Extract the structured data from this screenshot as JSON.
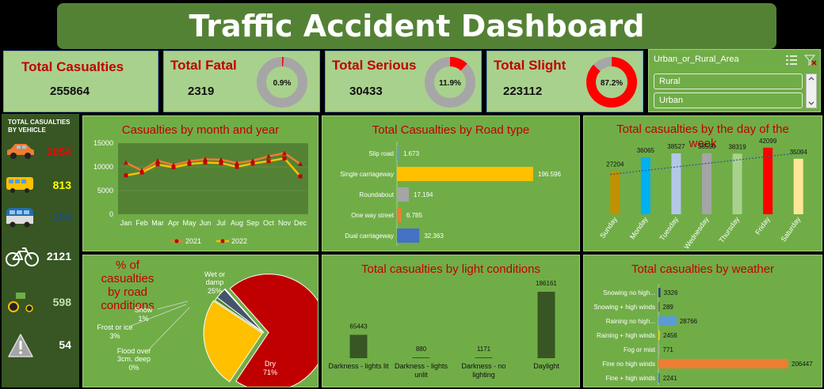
{
  "dashboard": {
    "title": "Traffic Accident Dashboard"
  },
  "kpis": {
    "total_casualties": {
      "label": "Total Casualties",
      "value": "255864"
    },
    "total_fatal": {
      "label": "Total Fatal",
      "value": "2319",
      "pct": "0.9%",
      "fraction": 0.009
    },
    "total_serious": {
      "label": "Total Serious",
      "value": "30433",
      "pct": "11.9%",
      "fraction": 0.119
    },
    "total_slight": {
      "label": "Total Slight",
      "value": "223112",
      "pct": "87.2%",
      "fraction": 0.872
    }
  },
  "filter": {
    "header": "Urban_or_Rural_Area",
    "options": [
      "Rural",
      "Urban"
    ]
  },
  "vehicles": {
    "header_line1": "TOTAL CASUALTIES",
    "header_line2": "BY VEHICLE",
    "items": [
      {
        "icon": "car-icon",
        "value": "2054",
        "color": "#ff0000"
      },
      {
        "icon": "bus-icon",
        "value": "813",
        "color": "#ffff00"
      },
      {
        "icon": "van-icon",
        "value": "204",
        "color": "#1f4e79"
      },
      {
        "icon": "bicycle-icon",
        "value": "2121",
        "color": "#ffffff"
      },
      {
        "icon": "tractor-icon",
        "value": "598",
        "color": "#c5e0b4"
      },
      {
        "icon": "warning-icon",
        "value": "54",
        "color": "#ffffff"
      }
    ]
  },
  "chart_data": [
    {
      "id": "month",
      "type": "line",
      "title": "Casualties by month and year",
      "categories": [
        "Jan",
        "Feb",
        "Mar",
        "Apr",
        "May",
        "Jun",
        "Jul",
        "Aug",
        "Sep",
        "Oct",
        "Nov",
        "Dec"
      ],
      "ylim": [
        0,
        15000
      ],
      "yticks": [
        "0",
        "5000",
        "10000",
        "15000"
      ],
      "series": [
        {
          "name": "2021",
          "color": "#ed7d31",
          "marker_color": "#c00000",
          "values": [
            10900,
            9200,
            11300,
            10400,
            11200,
            11600,
            11500,
            10800,
            11300,
            12200,
            12900,
            10600
          ]
        },
        {
          "name": "2022",
          "color": "#ffc000",
          "marker_color": "#c00000",
          "values": [
            8200,
            8800,
            10500,
            9900,
            10600,
            10900,
            10800,
            10000,
            10700,
            11200,
            11800,
            8000
          ]
        }
      ]
    },
    {
      "id": "road",
      "type": "bar",
      "title": "Total Casualties by Road type",
      "categories": [
        "Slip road",
        "Single carriageway",
        "Roundabout",
        "One way street",
        "Dual carriageway"
      ],
      "values": [
        1673,
        196596,
        17194,
        6785,
        32363
      ],
      "labels": [
        "1.673",
        "196.596",
        "17.194",
        "6.785",
        "32.363"
      ],
      "colors": [
        "#5b9bd5",
        "#ffc000",
        "#a5a5a5",
        "#ed7d31",
        "#4472c4"
      ]
    },
    {
      "id": "day",
      "type": "bar",
      "title": "Total casualties by the day of the week",
      "title_line1": "Total casualties by the day of the",
      "title_line2": "week",
      "categories": [
        "Sunday",
        "Monday",
        "Tuesday",
        "Wednesday",
        "Thursday",
        "Friday",
        "Saturday"
      ],
      "values": [
        27204,
        36065,
        38527,
        38556,
        38319,
        42099,
        35094
      ],
      "labels": [
        "27204",
        "36065",
        "38527",
        "38556",
        "38319",
        "42099",
        "35094"
      ],
      "colors": [
        "#bf9000",
        "#00b0f0",
        "#b4c7e7",
        "#a5a5a5",
        "#a9d18e",
        "#ff0000",
        "#ffe699"
      ]
    },
    {
      "id": "road_conditions",
      "type": "pie",
      "title_line1": "% of casualties",
      "title_line2": "by road",
      "title_line3": "conditions",
      "slices": [
        {
          "name": "Dry",
          "pct": "71%",
          "value": 71,
          "color": "#c00000"
        },
        {
          "name": "Wet or damp",
          "name_line1": "Wet or",
          "name_line2": "damp",
          "pct": "25%",
          "value": 25,
          "color": "#ffc000"
        },
        {
          "name": "Snow",
          "pct": "1%",
          "value": 1,
          "color": "#548235"
        },
        {
          "name": "Frost or ice",
          "pct": "3%",
          "value": 3,
          "color": "#44546a"
        },
        {
          "name": "Flood over 3cm. deep",
          "name_line1": "Flood over",
          "name_line2": "3cm. deep",
          "pct": "0%",
          "value": 0.2,
          "color": "#2e75b6"
        }
      ]
    },
    {
      "id": "light",
      "type": "bar",
      "title": "Total casualties by light conditions",
      "categories": [
        "Darkness - lights lit",
        "Darkness - lights unlit",
        "Darkness - no lighting",
        "Daylight"
      ],
      "cat_line1": [
        "Darkness - lights lit",
        "Darkness - lights",
        "Darkness - no",
        "Daylight"
      ],
      "cat_line2": [
        "",
        "unlit",
        "lighting",
        ""
      ],
      "values": [
        65443,
        880,
        1171,
        186161
      ],
      "labels": [
        "65443",
        "880",
        "1171",
        "186161"
      ],
      "color": "#375623"
    },
    {
      "id": "weather",
      "type": "bar",
      "title": "Total casualties by weather",
      "categories": [
        "Snowing no high...",
        "Snowing + high winds",
        "Raining no high...",
        "Raining + high winds",
        "Fog or mist",
        "Fine no high winds",
        "Fine + high winds"
      ],
      "values": [
        3326,
        289,
        28766,
        2456,
        771,
        206447,
        2241
      ],
      "labels": [
        "3326",
        "289",
        "28766",
        "2456",
        "771",
        "206447",
        "2241"
      ],
      "colors": [
        "#264478",
        "#636363",
        "#5b9bd5",
        "#ffc000",
        "#a5a5a5",
        "#ed7d31",
        "#4472c4"
      ]
    }
  ]
}
